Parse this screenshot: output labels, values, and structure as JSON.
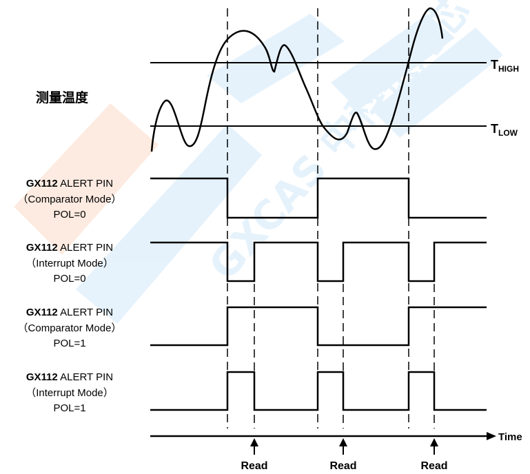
{
  "temperature_label": "测量温度",
  "thresholds": {
    "high": {
      "main": "T",
      "sub": "HIGH"
    },
    "low": {
      "main": "T",
      "sub": "LOW"
    }
  },
  "signals": [
    {
      "chip": "GX112",
      "name": "ALERT PIN",
      "mode": "（Comparator Mode）",
      "pol": "POL=0"
    },
    {
      "chip": "GX112",
      "name": "ALERT PIN",
      "mode": "（Interrupt Mode）",
      "pol": "POL=0"
    },
    {
      "chip": "GX112",
      "name": "ALERT PIN",
      "mode": "（Comparator Mode）",
      "pol": "POL=1"
    },
    {
      "chip": "GX112",
      "name": "ALERT PIN",
      "mode": "（Interrupt Mode）",
      "pol": "POL=1"
    }
  ],
  "time_axis_label": "Time",
  "read_labels": [
    "Read",
    "Read",
    "Read"
  ],
  "watermark": "GXCAS 中科银河芯",
  "colors": {
    "line": "#000000",
    "watermark_blue": "#4da6ec",
    "watermark_orange": "#f47a34"
  }
}
